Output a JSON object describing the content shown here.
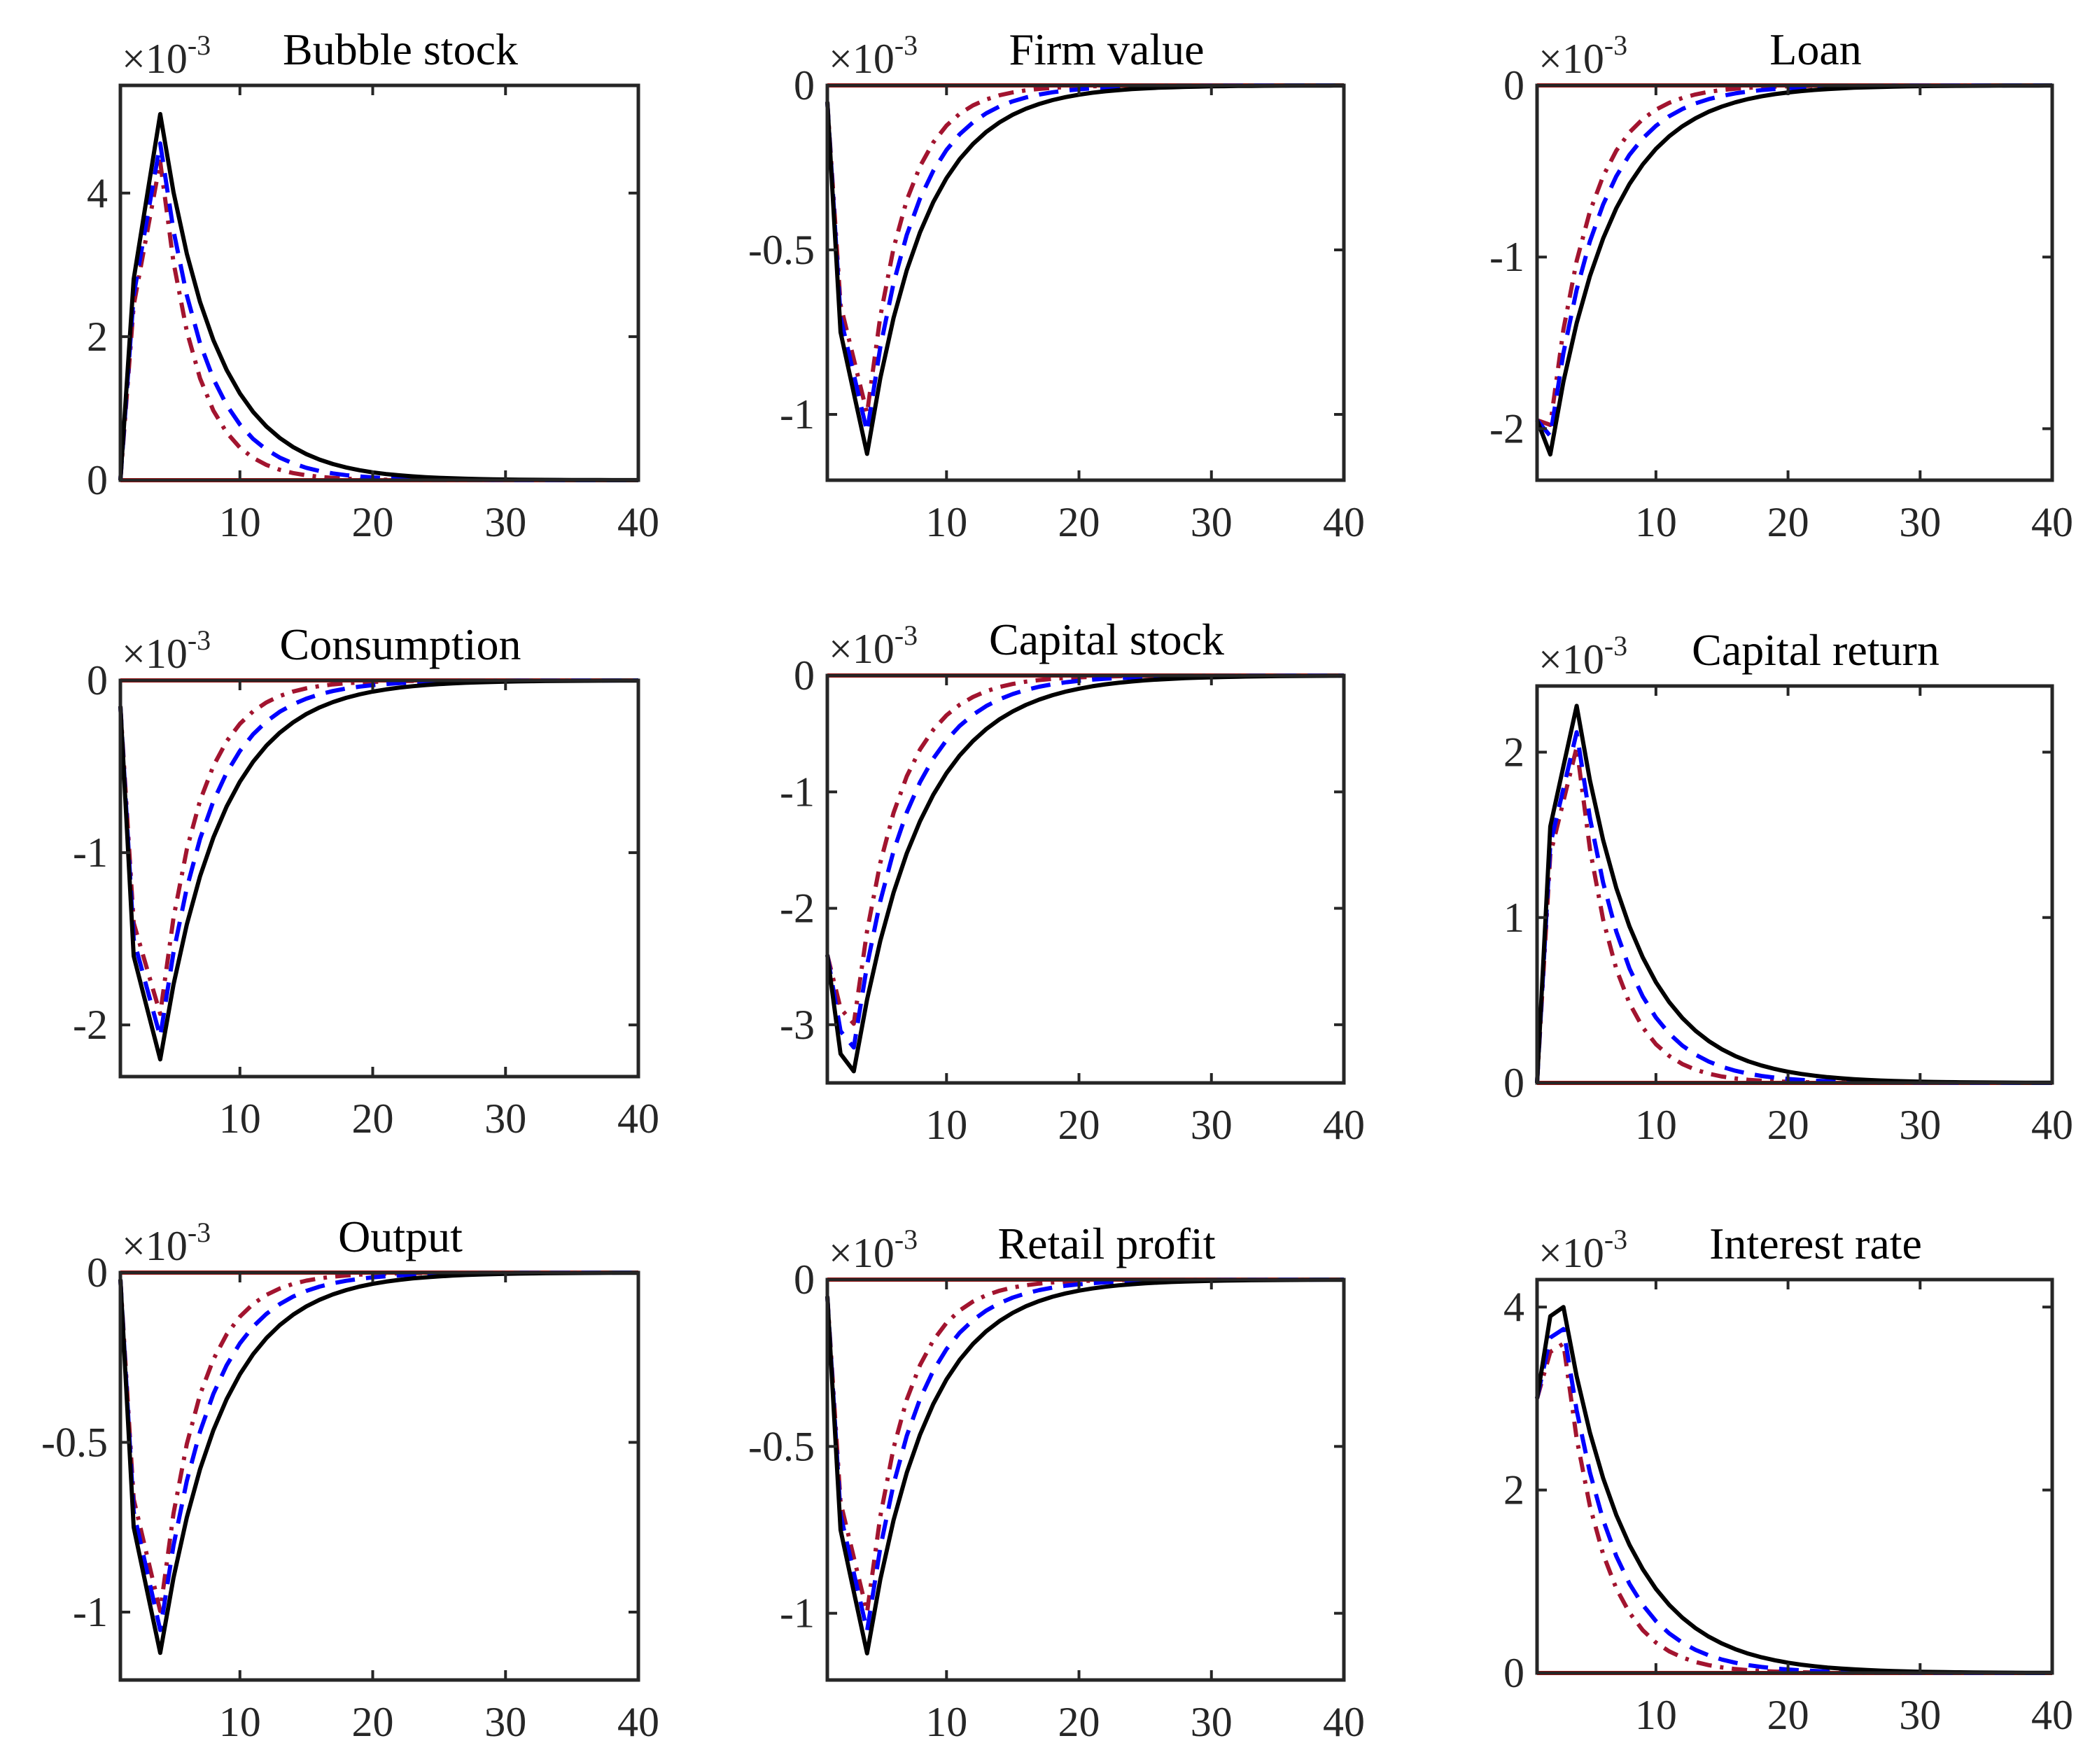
{
  "colors": {
    "benchmark": "#000000",
    "alt1": "#0000ff",
    "alt2": "#a2142f",
    "steady_state": "#ff0000",
    "axis": "#262626"
  },
  "chart_data": [
    {
      "type": "line",
      "title": "Bubble stock",
      "scale_base": "×10",
      "scale_exp": "-3",
      "xlabel": "",
      "ylabel": "",
      "xlim": [
        1,
        40
      ],
      "ylim": [
        0,
        5.5
      ],
      "xticks": [
        10,
        20,
        30,
        40
      ],
      "yticks": [
        0,
        2,
        4
      ],
      "ytick_labels": [
        "0",
        "2",
        "4"
      ],
      "steady_state": 0,
      "shape": {
        "start": 0,
        "p2": 2.8,
        "extreme": 5.1,
        "peak_t": 4,
        "rate": 0.24,
        "ratio_alt1": 0.92,
        "ratio_alt2": 0.87,
        "rate_alt1": 0.3,
        "rate_alt2": 0.38
      }
    },
    {
      "type": "line",
      "title": "Firm value",
      "scale_base": "×10",
      "scale_exp": "-3",
      "xlabel": "",
      "ylabel": "",
      "xlim": [
        1,
        40
      ],
      "ylim": [
        -1.2,
        0
      ],
      "xticks": [
        10,
        20,
        30,
        40
      ],
      "yticks": [
        0,
        -0.5,
        -1
      ],
      "ytick_labels": [
        "0",
        "-0.5",
        "-1"
      ],
      "steady_state": 0,
      "shape": {
        "start": -0.05,
        "p2": -0.75,
        "extreme": -1.12,
        "peak_t": 4,
        "rate": 0.23,
        "ratio_alt1": 0.94,
        "ratio_alt2": 0.89,
        "rate_alt1": 0.28,
        "rate_alt2": 0.35
      }
    },
    {
      "type": "line",
      "title": "Loan",
      "scale_base": "×10",
      "scale_exp": "-3",
      "xlabel": "",
      "ylabel": "",
      "xlim": [
        1,
        40
      ],
      "ylim": [
        -2.3,
        0
      ],
      "xticks": [
        10,
        20,
        30,
        40
      ],
      "yticks": [
        0,
        -1,
        -2
      ],
      "ytick_labels": [
        "0",
        "-1",
        "-2"
      ],
      "steady_state": 0,
      "shape": {
        "start": -1.95,
        "p2": -2.15,
        "extreme": -2.15,
        "peak_t": 2,
        "rate": 0.22,
        "ratio_alt1": 0.95,
        "ratio_alt2": 0.92,
        "rate_alt1": 0.27,
        "rate_alt2": 0.33
      }
    },
    {
      "type": "line",
      "title": "Consumption",
      "scale_base": "×10",
      "scale_exp": "-3",
      "xlabel": "",
      "ylabel": "",
      "xlim": [
        1,
        40
      ],
      "ylim": [
        -2.3,
        0
      ],
      "xticks": [
        10,
        20,
        30,
        40
      ],
      "yticks": [
        0,
        -1,
        -2
      ],
      "ytick_labels": [
        "0",
        "-1",
        "-2"
      ],
      "steady_state": 0,
      "shape": {
        "start": -0.15,
        "p2": -1.6,
        "extreme": -2.2,
        "peak_t": 4,
        "rate": 0.22,
        "ratio_alt1": 0.94,
        "ratio_alt2": 0.88,
        "rate_alt1": 0.27,
        "rate_alt2": 0.34
      }
    },
    {
      "type": "line",
      "title": "Capital stock",
      "scale_base": "×10",
      "scale_exp": "-3",
      "xlabel": "",
      "ylabel": "",
      "xlim": [
        1,
        40
      ],
      "ylim": [
        -3.5,
        0
      ],
      "xticks": [
        10,
        20,
        30,
        40
      ],
      "yticks": [
        0,
        -1,
        -2,
        -3
      ],
      "ytick_labels": [
        "0",
        "-1",
        "-2",
        "-3"
      ],
      "steady_state": 0,
      "shape": {
        "start": -2.4,
        "p2": -3.25,
        "extreme": -3.4,
        "peak_t": 3,
        "rate": 0.2,
        "ratio_alt1": 0.94,
        "ratio_alt2": 0.88,
        "rate_alt1": 0.25,
        "rate_alt2": 0.31
      }
    },
    {
      "type": "line",
      "title": "Capital return",
      "scale_base": "×10",
      "scale_exp": "-3",
      "xlabel": "",
      "ylabel": "",
      "xlim": [
        1,
        40
      ],
      "ylim": [
        0,
        2.4
      ],
      "xticks": [
        10,
        20,
        30,
        40
      ],
      "yticks": [
        0,
        1,
        2
      ],
      "ytick_labels": [
        "0",
        "1",
        "2"
      ],
      "steady_state": 0,
      "shape": {
        "start": 0,
        "p2": 1.55,
        "extreme": 2.28,
        "peak_t": 4,
        "rate": 0.22,
        "ratio_alt1": 0.93,
        "ratio_alt2": 0.89,
        "rate_alt1": 0.28,
        "rate_alt2": 0.36
      }
    },
    {
      "type": "line",
      "title": "Output",
      "scale_base": "×10",
      "scale_exp": "-3",
      "xlabel": "",
      "ylabel": "",
      "xlim": [
        1,
        40
      ],
      "ylim": [
        -1.2,
        0
      ],
      "xticks": [
        10,
        20,
        30,
        40
      ],
      "yticks": [
        0,
        -0.5,
        -1
      ],
      "ytick_labels": [
        "0",
        "-0.5",
        "-1"
      ],
      "steady_state": 0,
      "shape": {
        "start": -0.02,
        "p2": -0.75,
        "extreme": -1.12,
        "peak_t": 4,
        "rate": 0.22,
        "ratio_alt1": 0.94,
        "ratio_alt2": 0.89,
        "rate_alt1": 0.27,
        "rate_alt2": 0.34
      }
    },
    {
      "type": "line",
      "title": "Retail profit",
      "scale_base": "×10",
      "scale_exp": "-3",
      "xlabel": "",
      "ylabel": "",
      "xlim": [
        1,
        40
      ],
      "ylim": [
        -1.2,
        0
      ],
      "xticks": [
        10,
        20,
        30,
        40
      ],
      "yticks": [
        0,
        -0.5,
        -1
      ],
      "ytick_labels": [
        "0",
        "-0.5",
        "-1"
      ],
      "steady_state": 0,
      "shape": {
        "start": -0.05,
        "p2": -0.75,
        "extreme": -1.12,
        "peak_t": 4,
        "rate": 0.22,
        "ratio_alt1": 0.94,
        "ratio_alt2": 0.89,
        "rate_alt1": 0.27,
        "rate_alt2": 0.34
      }
    },
    {
      "type": "line",
      "title": "Interest rate",
      "scale_base": "×10",
      "scale_exp": "-3",
      "xlabel": "",
      "ylabel": "",
      "xlim": [
        1,
        40
      ],
      "ylim": [
        0,
        4.3
      ],
      "xticks": [
        10,
        20,
        30,
        40
      ],
      "yticks": [
        0,
        2,
        4
      ],
      "ytick_labels": [
        "0",
        "2",
        "4"
      ],
      "steady_state": 0,
      "shape": {
        "start": 3.0,
        "p2": 3.9,
        "extreme": 4.0,
        "peak_t": 3,
        "rate": 0.21,
        "ratio_alt1": 0.94,
        "ratio_alt2": 0.9,
        "rate_alt1": 0.27,
        "rate_alt2": 0.34
      }
    }
  ]
}
